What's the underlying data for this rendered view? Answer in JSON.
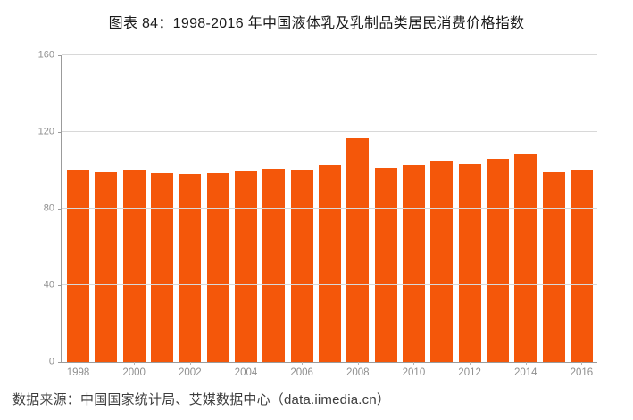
{
  "page": {
    "title": "图表 84：1998-2016 年中国液体乳及乳制品类居民消费价格指数",
    "source": "数据来源：中国国家统计局、艾媒数据中心（data.iimedia.cn）"
  },
  "colors": {
    "bar": "#F4570A",
    "axis": "#9B9B9B",
    "gridline": "#D8D8D8",
    "tick": "#B5B5B5",
    "axis_label": "#8F8F8F",
    "title_text": "#1A1A1A",
    "source_text": "#3D3D3D"
  },
  "chart_data": {
    "type": "bar",
    "title": "图表 84：1998-2016 年中国液体乳及乳制品类居民消费价格指数",
    "categories": [
      "1998",
      "1999",
      "2000",
      "2001",
      "2002",
      "2003",
      "2004",
      "2005",
      "2006",
      "2007",
      "2008",
      "2009",
      "2010",
      "2011",
      "2012",
      "2013",
      "2014",
      "2015",
      "2016"
    ],
    "values": [
      100.2,
      99.0,
      100.0,
      98.6,
      98.1,
      98.6,
      99.5,
      100.4,
      100.1,
      102.9,
      116.6,
      101.2,
      102.7,
      105.0,
      103.4,
      106.1,
      108.4,
      98.9,
      100.0
    ],
    "x_tick_labels": [
      "1998",
      "2000",
      "2002",
      "2004",
      "2006",
      "2008",
      "2010",
      "2012",
      "2014",
      "2016"
    ],
    "xlabel": "",
    "ylabel": "",
    "ylim": [
      0,
      160
    ],
    "yticks": [
      0,
      40,
      80,
      120,
      160
    ],
    "grid": true,
    "legend": false
  }
}
